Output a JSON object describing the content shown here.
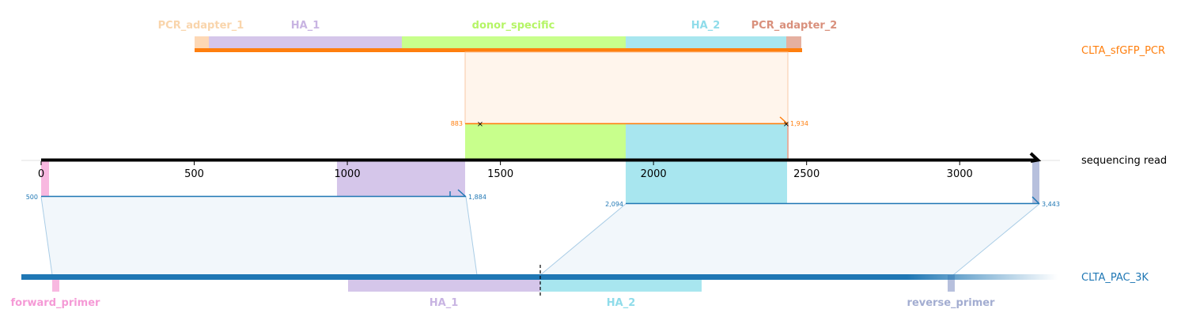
{
  "colors": {
    "pcr_adapter_1": "#fdd8b5",
    "ha_1": "#d5c6ea",
    "donor_specific": "#c8ff8c",
    "ha_2": "#a8e6ef",
    "pcr_adapter_2": "#e5b0a0",
    "forward_primer": "#f8b8e0",
    "reverse_primer": "#b7c0dd",
    "pcr_bar": "#ff7f0e",
    "pac_bar": "#1f77b4",
    "read_axis": "#000000"
  },
  "top_features": [
    {
      "name": "pcr-adapter-1-label",
      "label": "PCR_adapter_1",
      "color": "#f9d5ac"
    },
    {
      "name": "ha-1-top-label",
      "label": "HA_1",
      "color": "#c8b4e2"
    },
    {
      "name": "donor-specific-label",
      "label": "donor_specific",
      "color": "#b5f566"
    },
    {
      "name": "ha-2-top-label",
      "label": "HA_2",
      "color": "#8fdcea"
    },
    {
      "name": "pcr-adapter-2-label",
      "label": "PCR_adapter_2",
      "color": "#d9907c"
    }
  ],
  "bottom_features": [
    {
      "name": "forward-primer-label",
      "label": "forward_primer",
      "color": "#f59ad6"
    },
    {
      "name": "ha-1-bottom-label",
      "label": "HA_1",
      "color": "#c8b4e2"
    },
    {
      "name": "ha-2-bottom-label",
      "label": "HA_2",
      "color": "#8fdcea"
    },
    {
      "name": "reverse-primer-label",
      "label": "reverse_primer",
      "color": "#a3add1"
    }
  ],
  "tracks": {
    "pcr": "CLTA_sfGFP_PCR",
    "read": "sequencing read",
    "pac": "CLTA_PAC_3K"
  },
  "read_axis": {
    "min": 0,
    "max": 3250,
    "ticks": [
      0,
      500,
      1000,
      1500,
      2000,
      2500,
      3000
    ],
    "tick_labels": [
      "0",
      "500",
      "1000",
      "1500",
      "2000",
      "2500",
      "3000"
    ]
  },
  "alignments": [
    {
      "name": "pcr-alignment",
      "start_label": "883",
      "end_label": "1,934",
      "read_start": 1383,
      "read_end": 2434
    },
    {
      "name": "pac-alignment-1",
      "start_label": "500",
      "end_label": "1,884",
      "read_start": 0,
      "read_end": 1384
    },
    {
      "name": "pac-alignment-2",
      "start_label": "2,094",
      "end_label": "3,443",
      "read_start": 1900,
      "read_end": 3250
    }
  ]
}
